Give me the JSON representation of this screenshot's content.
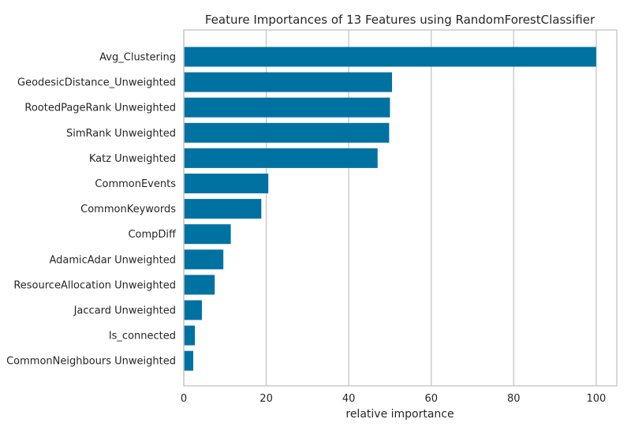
{
  "chart_data": {
    "type": "bar",
    "orientation": "horizontal",
    "title": "Feature Importances of 13 Features using RandomForestClassifier",
    "xlabel": "relative importance",
    "ylabel": "",
    "xlim": [
      0,
      105
    ],
    "xticks": [
      0,
      20,
      40,
      60,
      80,
      100
    ],
    "grid": true,
    "color": "#0072a2",
    "categories": [
      "Avg_Clustering",
      "GeodesicDistance_Unweighted",
      "RootedPageRank Unweighted",
      "SimRank Unweighted",
      "Katz Unweighted",
      "CommonEvents",
      "CommonKeywords",
      "CompDiff",
      "AdamicAdar Unweighted",
      "ResourceAllocation Unweighted",
      "Jaccard Unweighted",
      "Is_connected",
      "CommonNeighbours Unweighted"
    ],
    "values": [
      100,
      50.5,
      50.0,
      49.8,
      47.0,
      20.5,
      18.8,
      11.4,
      9.6,
      7.5,
      4.4,
      2.7,
      2.3
    ]
  }
}
